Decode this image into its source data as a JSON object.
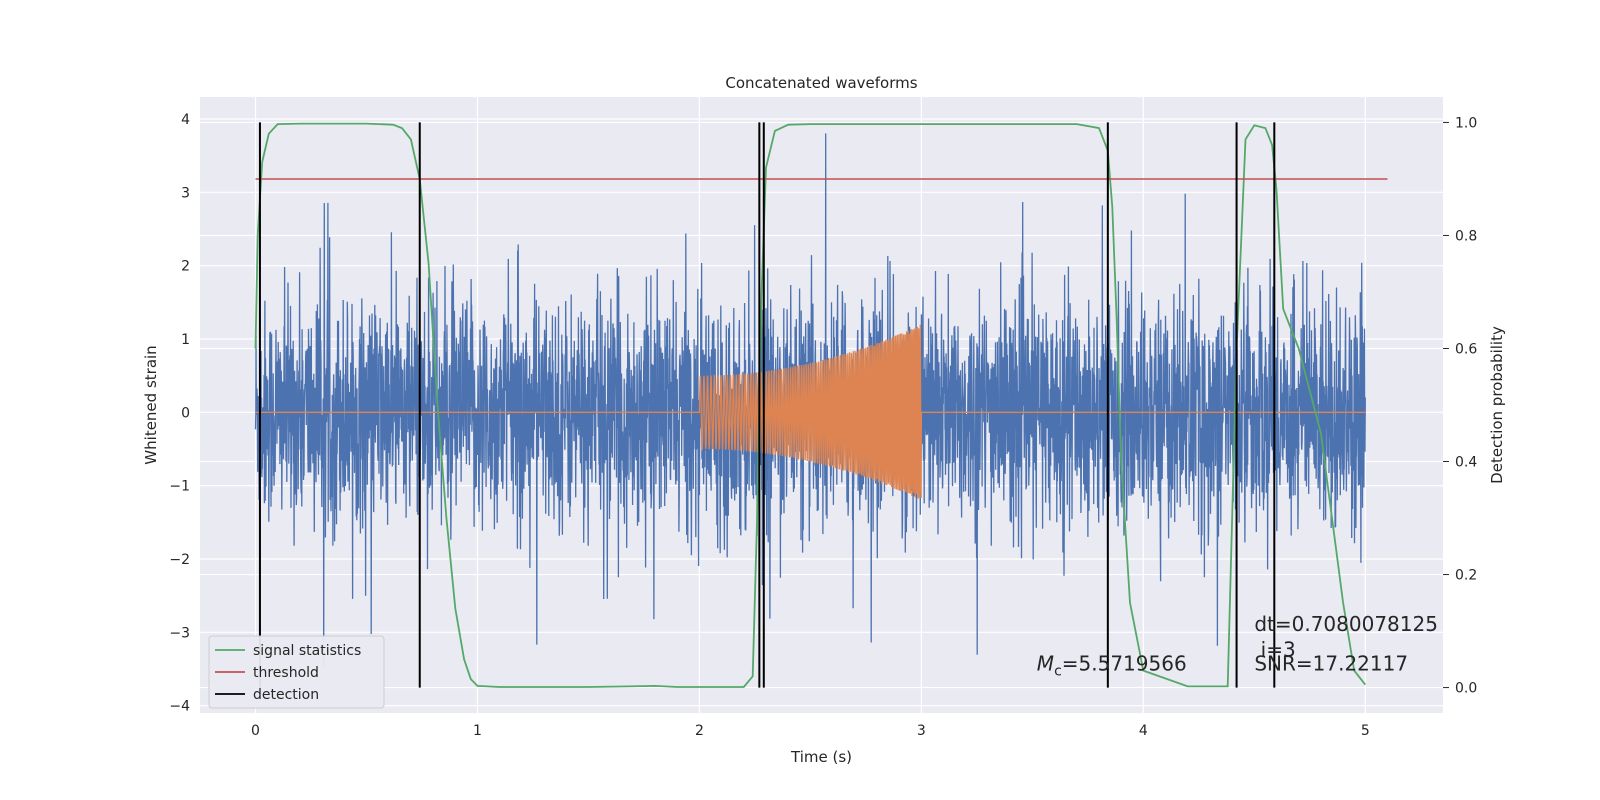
{
  "chart_data": {
    "type": "line",
    "title": "Concatenated waveforms",
    "xlabel": "Time (s)",
    "ylabel": "Whitened strain",
    "ylabel_right": "Detection probability",
    "xlim": [
      -0.25,
      5.35
    ],
    "ylim": [
      -4.1,
      4.3
    ],
    "ylim_right": [
      -0.045,
      1.045
    ],
    "x_ticks": [
      0,
      1,
      2,
      3,
      4,
      5
    ],
    "y_ticks": [
      -4,
      -3,
      -2,
      -1,
      0,
      1,
      2,
      3,
      4
    ],
    "y_ticks_right": [
      0.0,
      0.2,
      0.4,
      0.6,
      0.8,
      1.0
    ],
    "x_tick_labels": [
      "0",
      "1",
      "2",
      "3",
      "4",
      "5"
    ],
    "y_tick_labels": [
      "−4",
      "−3",
      "−2",
      "−1",
      "0",
      "1",
      "2",
      "3",
      "4"
    ],
    "y_tick_labels_right": [
      "0.0",
      "0.2",
      "0.4",
      "0.6",
      "0.8",
      "1.0"
    ],
    "grid": true,
    "legend_position": "lower-left",
    "background": "#EAEAF2",
    "series": [
      {
        "key": "strain",
        "color": "#4C72B0",
        "x_range": [
          0,
          5
        ],
        "envelope_bounds": [
          -3.5,
          4.0
        ],
        "typical_band": [
          -1.4,
          1.5
        ]
      },
      {
        "key": "waveform",
        "color": "#DD8452",
        "x_range": [
          0,
          5
        ],
        "chirp_window": [
          2.0,
          3.0
        ],
        "amplitude_at_start": 0.5,
        "amplitude_at_end": 1.2
      },
      {
        "key": "signal_statistics",
        "name": "signal statistics",
        "color": "#55A868",
        "axis": "right",
        "x": [
          0.0,
          0.01,
          0.03,
          0.06,
          0.1,
          0.2,
          0.5,
          0.62,
          0.66,
          0.7,
          0.74,
          0.78,
          0.82,
          0.86,
          0.9,
          0.94,
          0.97,
          1.0,
          1.1,
          1.5,
          1.8,
          1.9,
          2.2,
          2.24,
          2.26,
          2.28,
          2.3,
          2.34,
          2.4,
          2.5,
          3.0,
          3.7,
          3.8,
          3.84,
          3.86,
          3.88,
          3.9,
          3.94,
          4.0,
          4.2,
          4.38,
          4.42,
          4.46,
          4.5,
          4.55,
          4.58,
          4.6,
          4.63,
          4.7,
          4.8,
          4.85,
          4.9,
          4.95,
          5.0
        ],
        "values": [
          0.6,
          0.8,
          0.93,
          0.98,
          0.997,
          0.998,
          0.998,
          0.996,
          0.99,
          0.97,
          0.9,
          0.75,
          0.5,
          0.3,
          0.14,
          0.05,
          0.015,
          0.003,
          0.001,
          0.001,
          0.003,
          0.001,
          0.001,
          0.02,
          0.3,
          0.7,
          0.92,
          0.985,
          0.996,
          0.997,
          0.997,
          0.997,
          0.99,
          0.95,
          0.85,
          0.65,
          0.4,
          0.15,
          0.03,
          0.002,
          0.002,
          0.6,
          0.97,
          0.995,
          0.99,
          0.96,
          0.88,
          0.67,
          0.6,
          0.45,
          0.3,
          0.15,
          0.03,
          0.005
        ]
      },
      {
        "key": "threshold",
        "name": "threshold",
        "color": "#C44E52",
        "axis": "right",
        "value": 0.9,
        "x_range": [
          0,
          5.1
        ]
      },
      {
        "key": "detection",
        "name": "detection",
        "color": "#000000",
        "axis": "right",
        "x": [
          0.02,
          0.74,
          2.27,
          2.29,
          3.84,
          4.42,
          4.59
        ],
        "y_range": [
          0.0,
          1.0
        ]
      }
    ],
    "annotations": [
      {
        "key": "mc",
        "symbol": "M",
        "subscript": "c",
        "text": "=5.5719566",
        "x": 3.52,
        "y": 0.03,
        "axis": "right"
      },
      {
        "key": "dt",
        "text": "dt=0.7080078125",
        "x": 4.5,
        "y": 0.1,
        "axis": "right"
      },
      {
        "key": "i",
        "text": " i=3",
        "x": 4.5,
        "y": 0.055,
        "axis": "right"
      },
      {
        "key": "snr",
        "text": "SNR=17.22117",
        "x": 4.5,
        "y": 0.03,
        "axis": "right"
      }
    ]
  }
}
